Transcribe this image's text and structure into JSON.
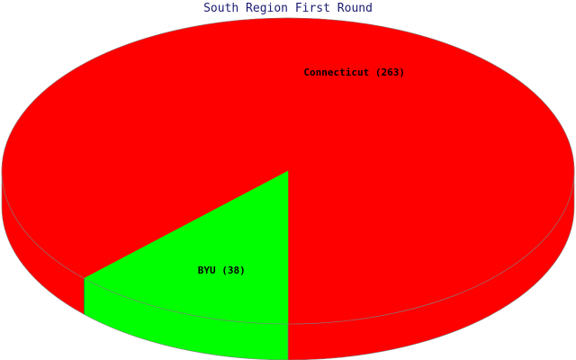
{
  "chart_data": {
    "type": "pie",
    "title": "South Region First Round",
    "slices": [
      {
        "label": "Connecticut (263)",
        "name": "Connecticut",
        "value": 263,
        "color": "#ff0000"
      },
      {
        "label": "BYU (38)",
        "name": "BYU",
        "value": 38,
        "color": "#00ff00"
      }
    ],
    "legend": "none",
    "style": "3d"
  }
}
